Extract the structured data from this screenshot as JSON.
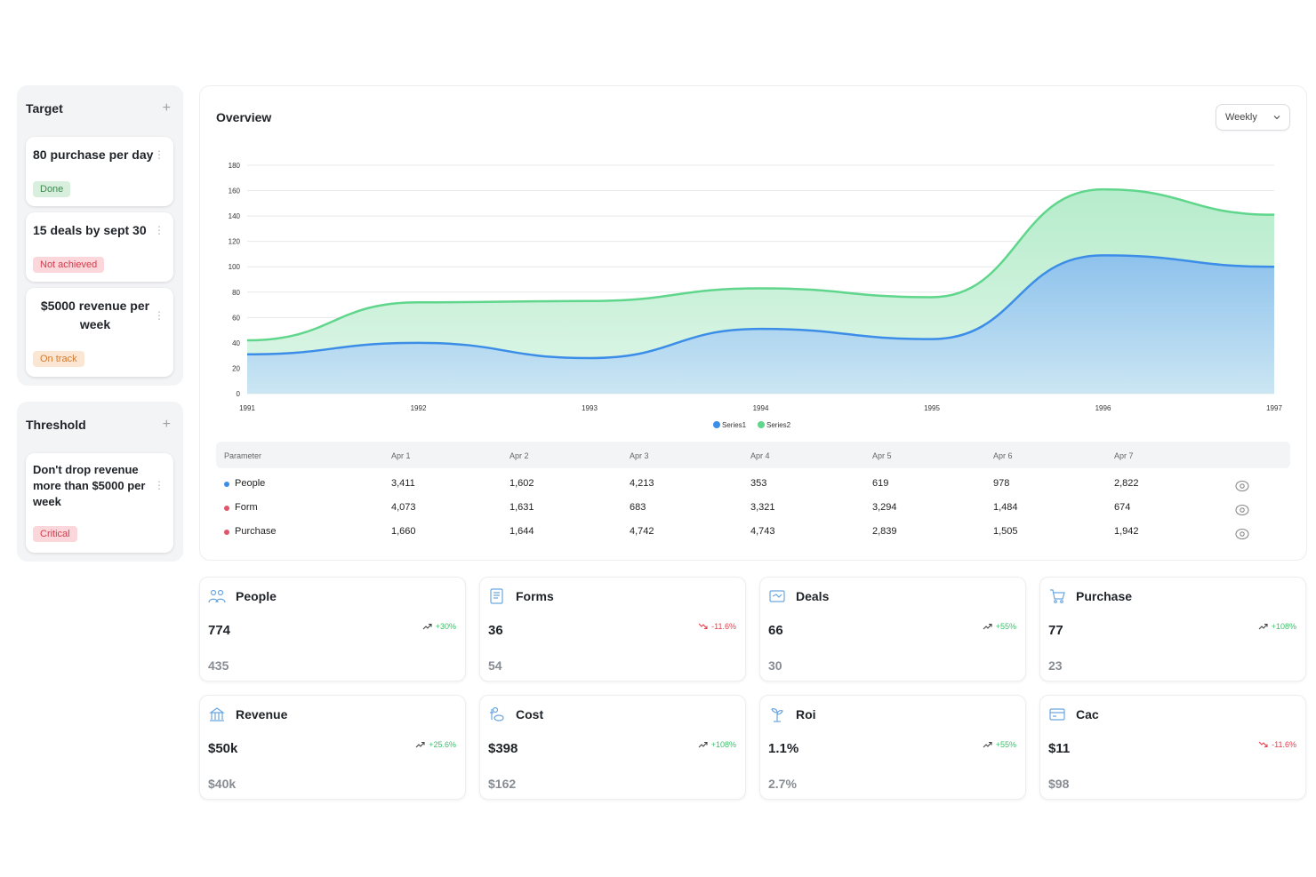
{
  "target": {
    "title": "Target",
    "add": "+",
    "cards": [
      {
        "title": "80 purchase per day",
        "badge": "Done"
      },
      {
        "title": "15 deals by sept 30",
        "badge": "Not achieved"
      },
      {
        "title": "$5000 revenue per week",
        "badge": "On track"
      }
    ]
  },
  "threshold": {
    "title": "Threshold",
    "add": "+",
    "cards": [
      {
        "title": "Don't drop revenue more than $5000 per week",
        "badge": "Critical"
      }
    ]
  },
  "overview": {
    "title": "Overview",
    "period": "Weekly"
  },
  "chart_data": {
    "type": "area",
    "x": [
      1991,
      1992,
      1993,
      1994,
      1995,
      1996,
      1997
    ],
    "ylim": [
      0,
      180
    ],
    "yticks": [
      0,
      20,
      40,
      60,
      80,
      100,
      120,
      140,
      160,
      180
    ],
    "series": [
      {
        "name": "Series1",
        "color": "#3b8de8",
        "values": [
          31,
          40,
          28,
          51,
          43,
          109,
          100
        ]
      },
      {
        "name": "Series2",
        "color": "#5fd68b",
        "values": [
          42,
          72,
          73,
          83,
          76,
          161,
          141
        ]
      }
    ],
    "grid": true,
    "legend": "bottom"
  },
  "table": {
    "columns": [
      "Parameter",
      "Apr 1",
      "Apr 2",
      "Apr 3",
      "Apr 4",
      "Apr 5",
      "Apr 6",
      "Apr 7"
    ],
    "rows": [
      {
        "name": "People",
        "color": "#3b8de8",
        "values": [
          "3,411",
          "1,602",
          "4,213",
          "353",
          "619",
          "978",
          "2,822"
        ]
      },
      {
        "name": "Form",
        "color": "#e0566a",
        "values": [
          "4,073",
          "1,631",
          "683",
          "3,321",
          "3,294",
          "1,484",
          "674"
        ]
      },
      {
        "name": "Purchase",
        "color": "#e0566a",
        "values": [
          "1,660",
          "1,644",
          "4,742",
          "4,743",
          "2,839",
          "1,505",
          "1,942"
        ]
      }
    ]
  },
  "kpis": [
    {
      "title": "People",
      "icon": "people-icon",
      "value": "774",
      "prev": "435",
      "change": "+30%",
      "trend": "up"
    },
    {
      "title": "Forms",
      "icon": "forms-icon",
      "value": "36",
      "prev": "54",
      "change": "-11.6%",
      "trend": "down"
    },
    {
      "title": "Deals",
      "icon": "deals-icon",
      "value": "66",
      "prev": "30",
      "change": "+55%",
      "trend": "up"
    },
    {
      "title": "Purchase",
      "icon": "purchase-icon",
      "value": "77",
      "prev": "23",
      "change": "+108%",
      "trend": "up"
    },
    {
      "title": "Revenue",
      "icon": "revenue-icon",
      "value": "$50k",
      "prev": "$40k",
      "change": "+25.6%",
      "trend": "up"
    },
    {
      "title": "Cost",
      "icon": "cost-icon",
      "value": "$398",
      "prev": "$162",
      "change": "+108%",
      "trend": "up"
    },
    {
      "title": "Roi",
      "icon": "roi-icon",
      "value": "1.1%",
      "prev": "2.7%",
      "change": "+55%",
      "trend": "up"
    },
    {
      "title": "Cac",
      "icon": "cac-icon",
      "value": "$11",
      "prev": "$98",
      "change": "-11.6%",
      "trend": "down"
    }
  ]
}
